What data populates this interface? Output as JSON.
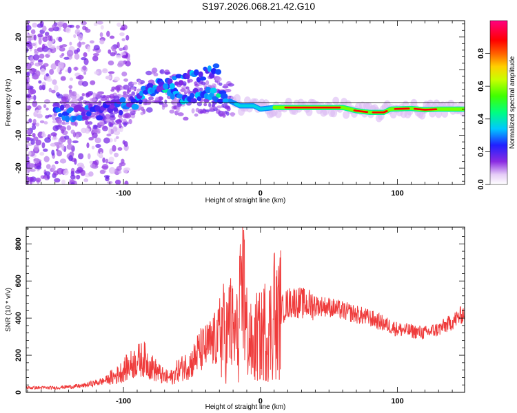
{
  "title": "S197.2026.068.21.42.G10",
  "colors": {
    "line": "#ef3b3b",
    "axis": "#000000",
    "background": "#ffffff"
  },
  "chart_data": [
    {
      "type": "heatmap",
      "title": "S197.2026.068.21.42.G10",
      "xlabel": "Height of straight line (km)",
      "ylabel": "Frequency (Hz)",
      "xlim": [
        -171,
        149
      ],
      "ylim": [
        -25,
        25
      ],
      "xticks": [
        -100,
        0,
        100
      ],
      "xtick_labels": [
        "-100",
        "0",
        "100"
      ],
      "yticks": [
        -20,
        -10,
        0,
        10,
        20
      ],
      "ytick_labels": [
        "-20",
        "-10",
        "0",
        "10",
        "20"
      ],
      "colorbar": {
        "label": "Normalized spectral amplitude",
        "range": [
          0,
          1
        ],
        "ticks": [
          0.0,
          0.2,
          0.4,
          0.6,
          0.8
        ],
        "tick_labels": [
          "0.0",
          "0.2",
          "0.4",
          "0.6",
          "0.8"
        ],
        "colormap": "rainbow (white–violet–blue–cyan–green–yellow–red–magenta)"
      },
      "ridge": {
        "description": "Frequency-vs-height track of the strongest spectral component",
        "x": [
          -120,
          -100,
          -85,
          -75,
          -65,
          -55,
          -45,
          -35,
          -25,
          -15,
          -5,
          0,
          10,
          20,
          40,
          60,
          70,
          80,
          90,
          95,
          110,
          120,
          130,
          149
        ],
        "y": [
          -3,
          -1,
          2,
          5,
          3,
          1,
          2,
          3,
          1,
          -1,
          -1,
          -2,
          -1.5,
          -1.5,
          -1.5,
          -1.5,
          -2.5,
          -3,
          -3,
          -2,
          -1.8,
          -2.2,
          -2,
          -2
        ]
      }
    },
    {
      "type": "line",
      "xlabel": "Height of straight line (km)",
      "ylabel": "SNR (10 * v/v)",
      "xlim": [
        -171,
        149
      ],
      "ylim": [
        0,
        890
      ],
      "xticks": [
        -100,
        0,
        100
      ],
      "xtick_labels": [
        "-100",
        "0",
        "100"
      ],
      "yticks": [
        0,
        200,
        400,
        600,
        800
      ],
      "ytick_labels": [
        "0",
        "200",
        "400",
        "600",
        "800"
      ],
      "series": [
        {
          "name": "SNR",
          "x": [
            -171,
            -150,
            -130,
            -115,
            -105,
            -100,
            -90,
            -85,
            -80,
            -75,
            -70,
            -65,
            -60,
            -55,
            -50,
            -45,
            -40,
            -35,
            -30,
            -28,
            -25,
            -22,
            -20,
            -17,
            -15,
            -13,
            -12,
            -10,
            -7,
            -5,
            -3,
            0,
            3,
            5,
            8,
            10,
            12,
            15,
            20,
            25,
            30,
            40,
            50,
            60,
            70,
            80,
            90,
            100,
            110,
            120,
            130,
            140,
            149
          ],
          "values": [
            25,
            25,
            35,
            60,
            90,
            120,
            170,
            180,
            140,
            110,
            80,
            80,
            120,
            140,
            160,
            220,
            240,
            270,
            300,
            340,
            290,
            360,
            320,
            300,
            270,
            550,
            390,
            330,
            260,
            210,
            300,
            290,
            340,
            320,
            360,
            300,
            380,
            440,
            480,
            490,
            480,
            470,
            460,
            440,
            420,
            400,
            370,
            340,
            330,
            320,
            340,
            380,
            430
          ]
        }
      ],
      "spikes": [
        {
          "x": -15,
          "value": 800
        },
        {
          "x": -12,
          "value": 890
        },
        {
          "x": 10,
          "value": 760
        },
        {
          "x": -28,
          "value": 480
        },
        {
          "x": -22,
          "value": 620
        }
      ]
    }
  ]
}
